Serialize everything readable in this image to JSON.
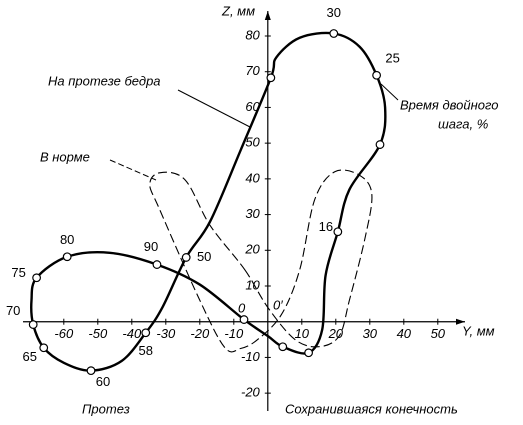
{
  "chart_data": {
    "type": "line",
    "xlabel": "Y, мм",
    "ylabel": "Z, мм",
    "origin_label": "0",
    "xlim": [
      -72,
      58
    ],
    "ylim": [
      -25,
      87
    ],
    "xticks": [
      -60,
      -50,
      -40,
      -30,
      -20,
      -10,
      10,
      20,
      30,
      40,
      50
    ],
    "yticks": [
      -20,
      -10,
      10,
      20,
      30,
      40,
      50,
      60,
      70,
      80
    ],
    "annotations": [
      "Время двойного",
      "шага, %",
      "Протез",
      "Сохранившаяся конечность",
      "0′"
    ],
    "series": [
      {
        "name": "На протезе бедра",
        "color": "#000000",
        "line_style": "solid",
        "x": [
          20.6,
          24,
          33,
          34.5,
          32,
          27,
          19.4,
          9.4,
          2.5,
          0.9,
          -8,
          -17,
          -24,
          -31,
          -35.9,
          -43,
          -52,
          -60,
          -65.9,
          -69,
          -69.5,
          -68,
          -59,
          -46.5,
          -32.6,
          -20,
          -7,
          0,
          4.4,
          12,
          16,
          17
        ],
        "values": [
          25.2,
          37,
          49.6,
          60,
          69,
          77,
          80.7,
          79.5,
          74,
          68.3,
          48,
          28,
          18,
          4,
          -3.1,
          -11,
          -13.7,
          -11.5,
          -7.3,
          -0.8,
          6,
          12.3,
          18.2,
          19.3,
          16,
          10.4,
          0.6,
          -4,
          -7,
          -8.7,
          -2.2,
          13
        ],
        "point_labels": [
          16,
          null,
          null,
          null,
          25,
          null,
          30,
          null,
          null,
          null,
          null,
          null,
          50,
          null,
          58,
          null,
          60,
          null,
          65,
          70,
          null,
          75,
          80,
          null,
          90,
          null,
          null,
          null,
          null,
          null,
          null,
          null
        ],
        "markers": [
          true,
          false,
          true,
          false,
          true,
          false,
          true,
          false,
          false,
          true,
          false,
          false,
          true,
          false,
          true,
          false,
          true,
          false,
          true,
          true,
          false,
          true,
          true,
          false,
          true,
          false,
          true,
          false,
          true,
          true,
          false,
          false
        ]
      },
      {
        "name": "В норме",
        "color": "#000000",
        "line_style": "dashed",
        "x": [
          -6.8,
          0,
          8,
          15,
          21,
          24,
          28.5,
          30.6,
          27,
          19.7,
          13.8,
          9.4,
          4,
          -3,
          -8,
          -12.6,
          -20,
          -31.8,
          -34.7,
          -31.8,
          -24.4,
          -17
        ],
        "values": [
          14.6,
          4,
          -5,
          -7,
          -4,
          6,
          23,
          35.6,
          41,
          42,
          34.2,
          14.6,
          2,
          -5,
          -7.5,
          -7.3,
          6,
          31.4,
          38.4,
          41.7,
          39.8,
          27
        ]
      }
    ]
  }
}
